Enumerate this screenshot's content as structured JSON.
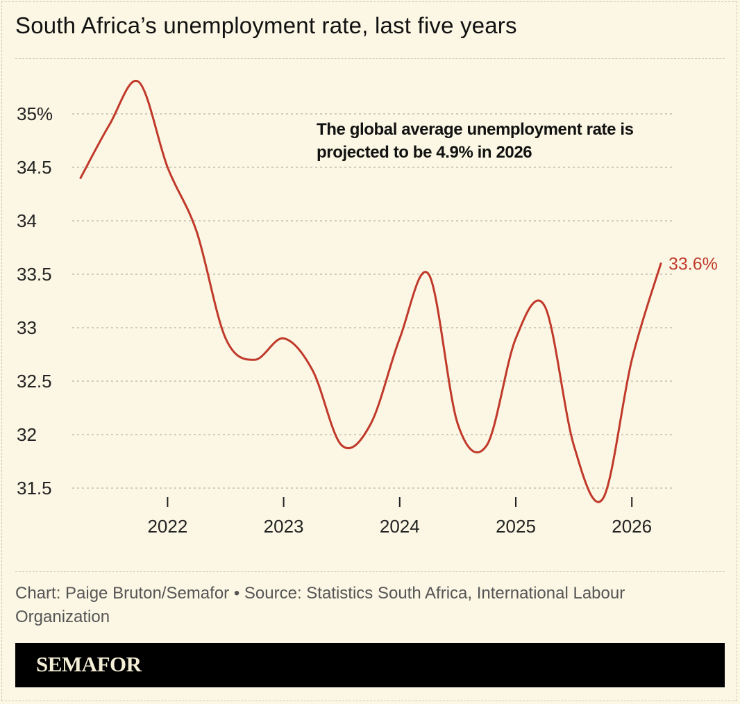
{
  "title": "South Africa’s unemployment rate, last five years",
  "annotation": {
    "line1": "The global average unemployment rate is",
    "line2": "projected to be 4.9% in 2026"
  },
  "credit": {
    "line1": "Chart: Paige Bruton/Semafor • Source: Statistics South Africa, International Labour",
    "line2": "Organization"
  },
  "brand": "SEMAFOR",
  "colors": {
    "line": "#c0392b",
    "background": "#fbf7e4",
    "brand_bar": "#000000"
  },
  "chart_data": {
    "type": "line",
    "title": "South Africa’s unemployment rate, last five years",
    "xlabel": "",
    "ylabel": "",
    "ylim": [
      31.5,
      35
    ],
    "xlim": [
      2021.25,
      2026.25
    ],
    "y_ticks": [
      31.5,
      32,
      32.5,
      33,
      33.5,
      34,
      34.5,
      35
    ],
    "y_tick_labels": [
      "31.5",
      "32",
      "32.5",
      "33",
      "33.5",
      "34",
      "34.5",
      "35%"
    ],
    "x_ticks": [
      2022,
      2023,
      2024,
      2025,
      2026
    ],
    "x_tick_labels": [
      "2022",
      "2023",
      "2024",
      "2025",
      "2026"
    ],
    "grid": "horizontal dashed",
    "series": [
      {
        "x": [
          2021.25,
          2021.5,
          2021.75,
          2022.0,
          2022.25,
          2022.5,
          2022.75,
          2023.0,
          2023.25,
          2023.5,
          2023.75,
          2024.0,
          2024.25,
          2024.5,
          2024.75,
          2025.0,
          2025.25,
          2025.5,
          2025.75,
          2026.0,
          2026.25
        ],
        "y": [
          34.4,
          34.9,
          35.3,
          34.5,
          33.9,
          32.9,
          32.7,
          32.9,
          32.6,
          31.9,
          32.1,
          32.9,
          33.5,
          32.1,
          31.9,
          32.9,
          33.2,
          31.9,
          31.4,
          32.7,
          33.6
        ],
        "end_label": "33.6%"
      }
    ]
  }
}
